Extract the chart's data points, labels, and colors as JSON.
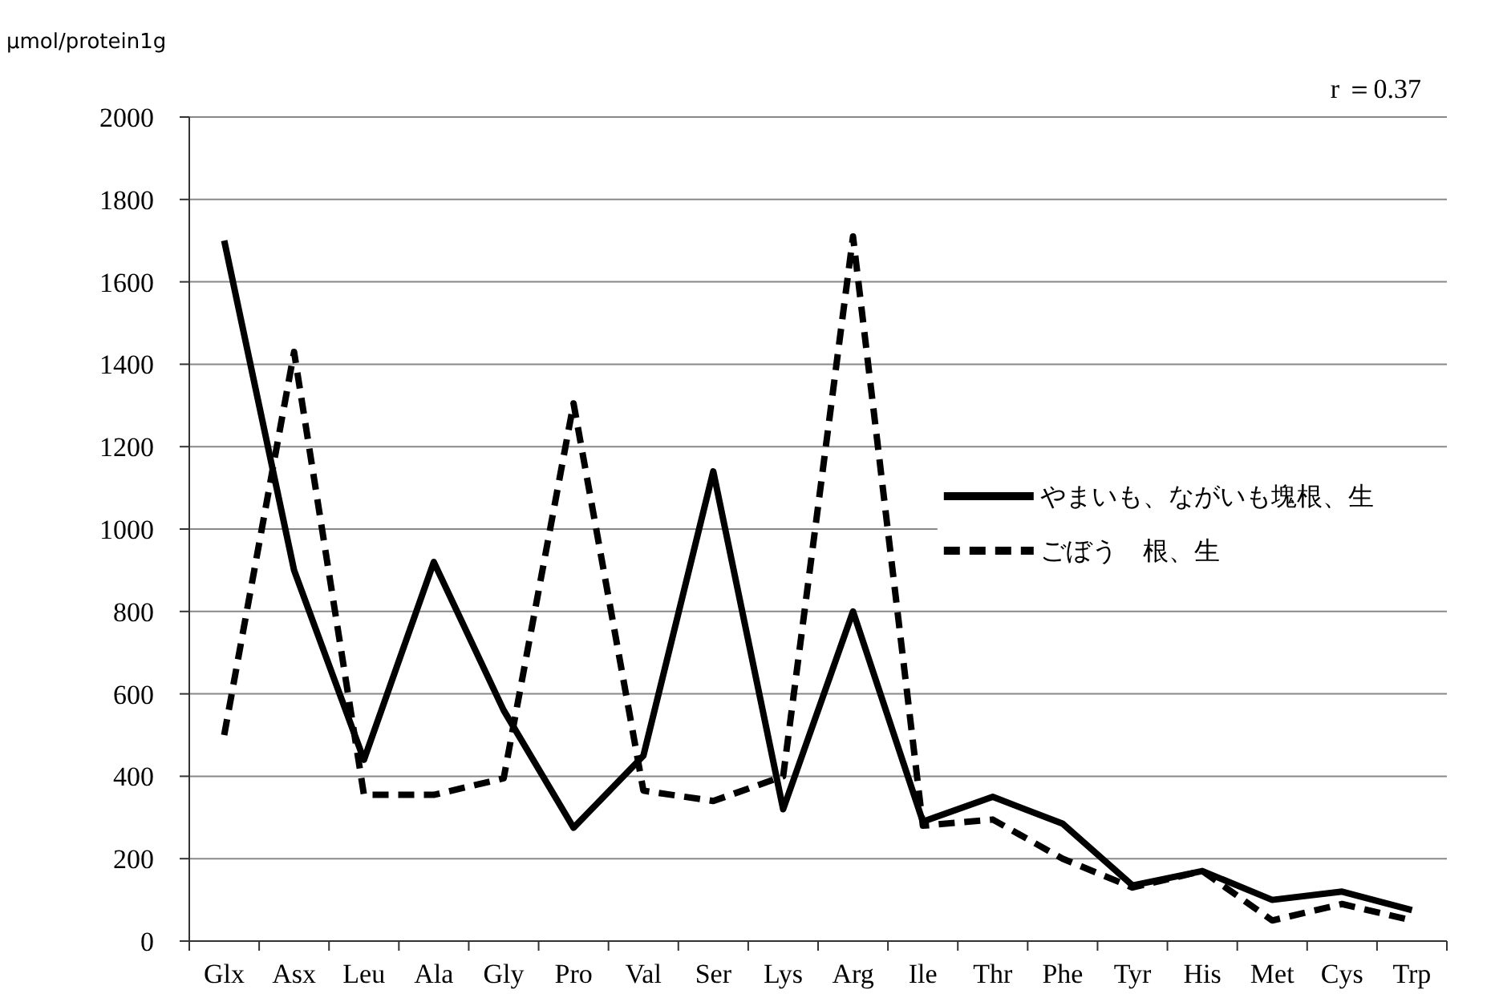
{
  "chart_data": {
    "type": "line",
    "ylabel": "μmol/protein1g",
    "annotations": [
      "r ＝0.37"
    ],
    "categories": [
      "Glx",
      "Asx",
      "Leu",
      "Ala",
      "Gly",
      "Pro",
      "Val",
      "Ser",
      "Lys",
      "Arg",
      "Ile",
      "Thr",
      "Phe",
      "Tyr",
      "His",
      "Met",
      "Cys",
      "Trp"
    ],
    "series": [
      {
        "name": "やまいも、ながいも塊根、生",
        "color": "#000000",
        "line_style": "solid",
        "values": [
          1700,
          900,
          440,
          920,
          560,
          275,
          450,
          1140,
          320,
          800,
          290,
          350,
          285,
          135,
          170,
          100,
          120,
          75
        ]
      },
      {
        "name": "ごぼう　根、生",
        "color": "#000000",
        "line_style": "dashed",
        "values": [
          500,
          1430,
          355,
          355,
          395,
          1305,
          365,
          340,
          400,
          1710,
          280,
          295,
          200,
          130,
          170,
          50,
          90,
          50
        ]
      }
    ],
    "ylim": [
      0,
      2000
    ],
    "yticks": [
      0,
      200,
      400,
      600,
      800,
      1000,
      1200,
      1400,
      1600,
      1800,
      2000
    ],
    "grid": "y",
    "legend": "right",
    "marker": "none"
  }
}
